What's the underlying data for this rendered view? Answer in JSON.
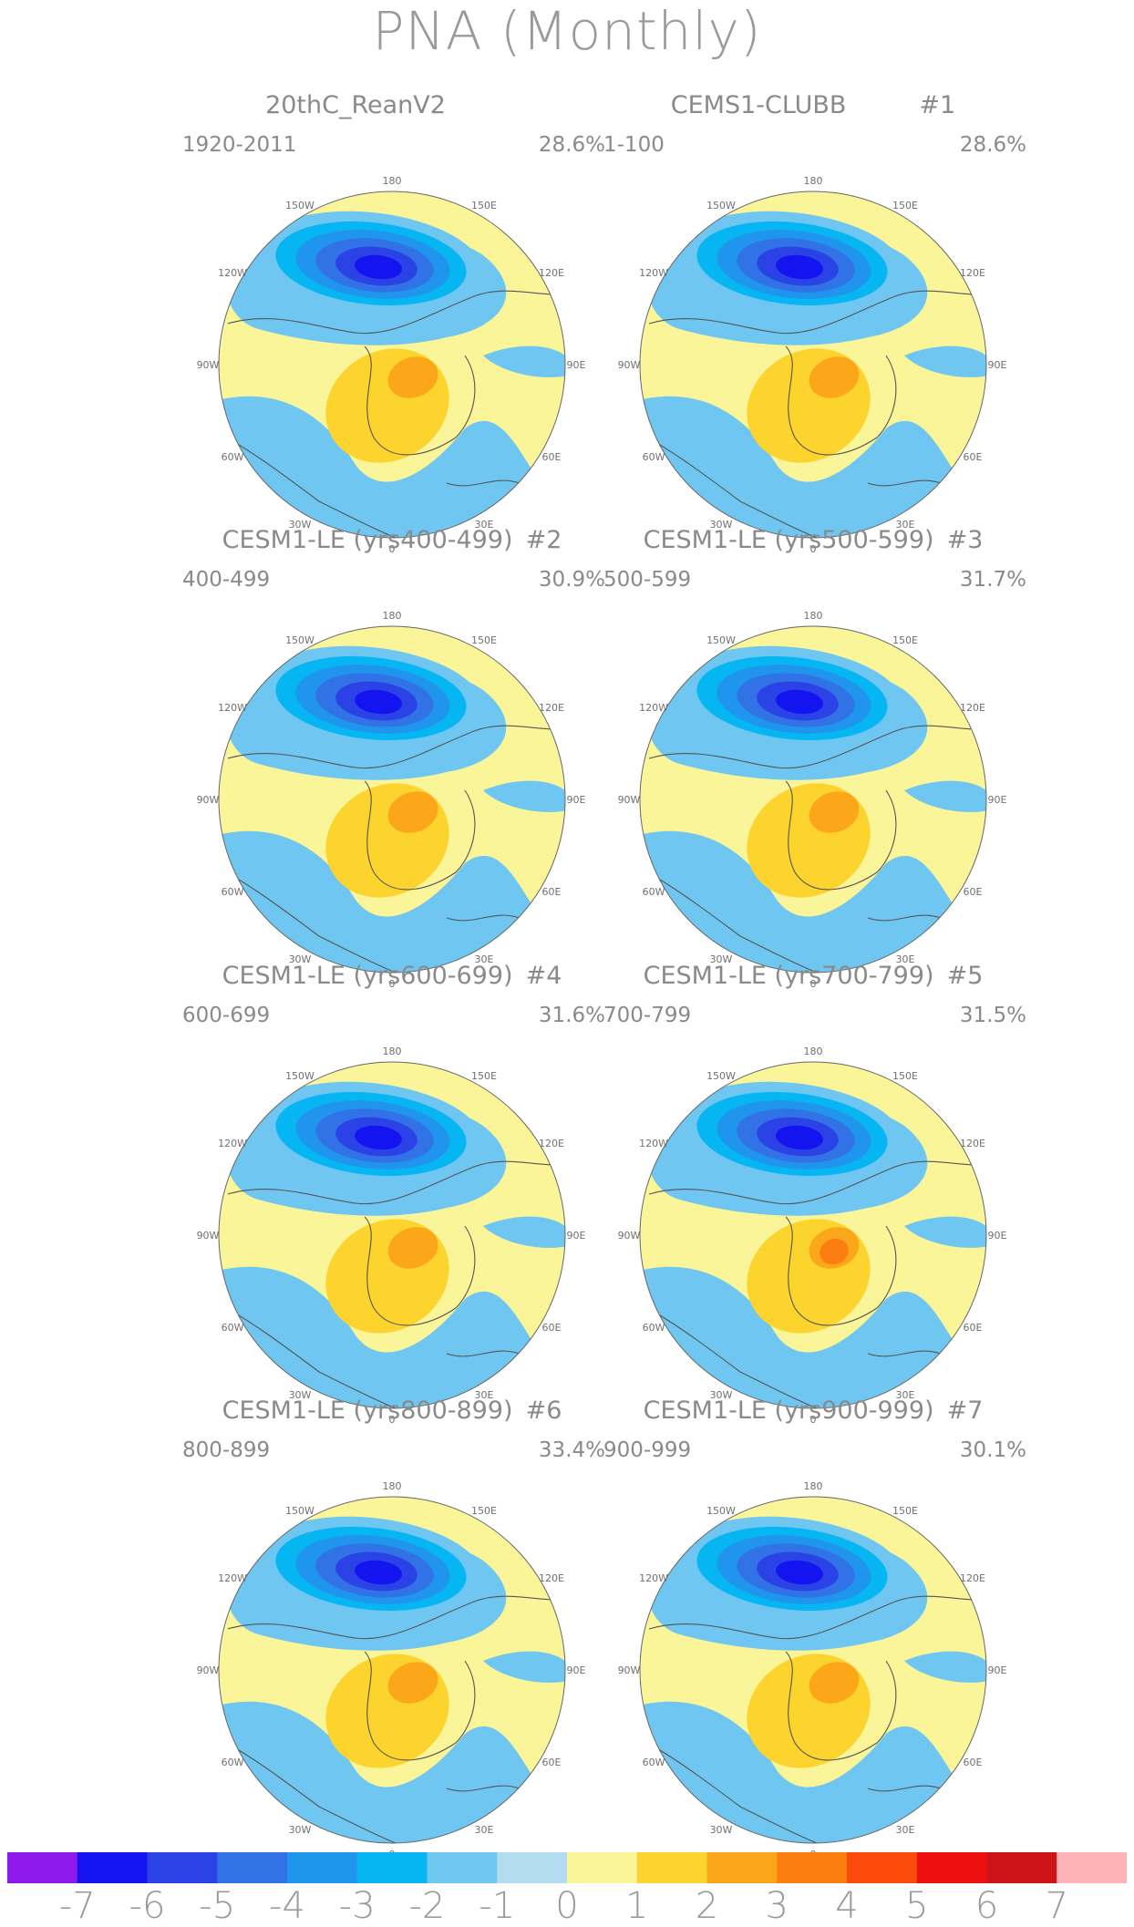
{
  "title": "PNA (Monthly)",
  "lon_labels": [
    "180",
    "150E",
    "120E",
    "90E",
    "60E",
    "30E",
    "0",
    "30W",
    "60W",
    "90W",
    "120W",
    "150W"
  ],
  "panels": [
    {
      "title": "20thC_ReanV2",
      "number": "",
      "years": "1920-2011",
      "pct": "28.6%",
      "max_pos": 2
    },
    {
      "title": "CEMS1-CLUBB",
      "number": "#1",
      "years": "1-100",
      "pct": "28.6%",
      "max_pos": 2
    },
    {
      "title": "CESM1-LE (yrs400-499)",
      "number": "#2",
      "years": "400-499",
      "pct": "30.9%",
      "max_pos": 2
    },
    {
      "title": "CESM1-LE (yrs500-599)",
      "number": "#3",
      "years": "500-599",
      "pct": "31.7%",
      "max_pos": 2
    },
    {
      "title": "CESM1-LE (yrs600-699)",
      "number": "#4",
      "years": "600-699",
      "pct": "31.6%",
      "max_pos": 2
    },
    {
      "title": "CESM1-LE (yrs700-799)",
      "number": "#5",
      "years": "700-799",
      "pct": "31.5%",
      "max_pos": 3
    },
    {
      "title": "CESM1-LE (yrs800-899)",
      "number": "#6",
      "years": "800-899",
      "pct": "33.4%",
      "max_pos": 2
    },
    {
      "title": "CESM1-LE (yrs900-999)",
      "number": "#7",
      "years": "900-999",
      "pct": "30.1%",
      "max_pos": 2
    }
  ],
  "colorbar": {
    "labels": [
      "-7",
      "-6",
      "-5",
      "-4",
      "-3",
      "-2",
      "-1",
      "0",
      "1",
      "2",
      "3",
      "4",
      "5",
      "6",
      "7"
    ],
    "colors": [
      "#8d1ae8",
      "#1414f0",
      "#2b42e6",
      "#3173e6",
      "#1f95ee",
      "#05b6f2",
      "#6fc6f0",
      "#b3dcf1",
      "#fbf59a",
      "#fcd42d",
      "#fca61a",
      "#fc7e10",
      "#fc4a0c",
      "#ee0f0f",
      "#cc1418",
      "#fdb3b6"
    ]
  }
}
